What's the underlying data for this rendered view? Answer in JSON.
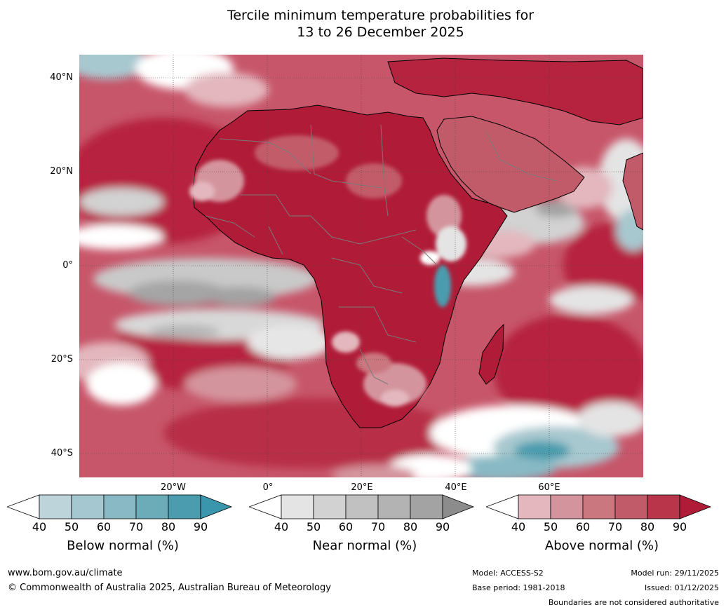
{
  "title": {
    "line1": "Tercile minimum temperature probabilities for",
    "line2": "13 to 26 December 2025"
  },
  "map": {
    "lat_labels": [
      "40°N",
      "20°N",
      "0°",
      "20°S",
      "40°S"
    ],
    "lon_labels": [
      "20°W",
      "0°",
      "20°E",
      "40°E",
      "60°E"
    ]
  },
  "legends": [
    {
      "name": "Below normal (%)",
      "ticks": [
        "40",
        "50",
        "60",
        "70",
        "80",
        "90"
      ],
      "colors": [
        "#ffffff",
        "#bdd4db",
        "#a5c7cf",
        "#88b9c4",
        "#6bacb8",
        "#4a9cae",
        "#3a96ac"
      ]
    },
    {
      "name": "Near normal (%)",
      "ticks": [
        "40",
        "50",
        "60",
        "70",
        "80",
        "90"
      ],
      "colors": [
        "#ffffff",
        "#e4e4e4",
        "#d2d2d2",
        "#c1c1c1",
        "#b3b3b3",
        "#a3a3a3",
        "#8c8c8c"
      ]
    },
    {
      "name": "Above normal (%)",
      "ticks": [
        "40",
        "50",
        "60",
        "70",
        "80",
        "90"
      ],
      "colors": [
        "#ffffff",
        "#e3b7bd",
        "#d4949d",
        "#cb7780",
        "#c25b69",
        "#b8354a",
        "#b01c38"
      ]
    }
  ],
  "footer": {
    "website": "www.bom.gov.au/climate",
    "copyright": "© Commonwealth of Australia 2025, Australian Bureau of Meteorology",
    "model": "Model: ACCESS-S2",
    "base_period": "Base period: 1981-2018",
    "model_run": "Model run: 29/11/2025",
    "issued": "Issued: 01/12/2025",
    "disclaimer": "Boundaries are not considered authoritative"
  }
}
